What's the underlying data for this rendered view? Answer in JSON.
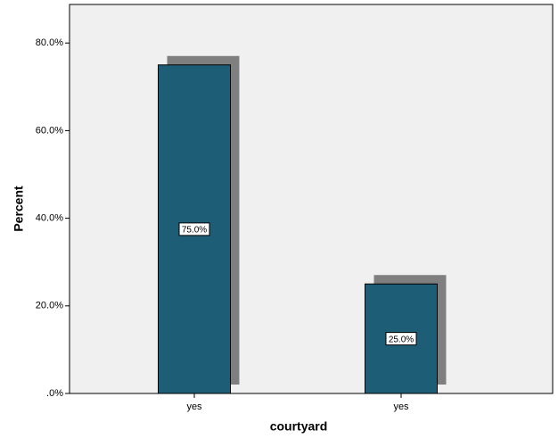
{
  "chart_data": {
    "type": "bar",
    "categories": [
      "yes",
      "yes"
    ],
    "values": [
      75,
      25
    ],
    "value_labels": [
      "75.0%",
      "25.0%"
    ],
    "color": "#1d5d75",
    "x_label": "courtyard",
    "y_label": "Percent",
    "ylim": [
      0,
      88.8
    ],
    "yticks": [
      {
        "value": 0,
        "label": ".0%"
      },
      {
        "value": 20,
        "label": "20.0%"
      },
      {
        "value": 40,
        "label": "40.0%"
      },
      {
        "value": 60,
        "label": "60.0%"
      },
      {
        "value": 80,
        "label": "80.0%"
      }
    ]
  }
}
